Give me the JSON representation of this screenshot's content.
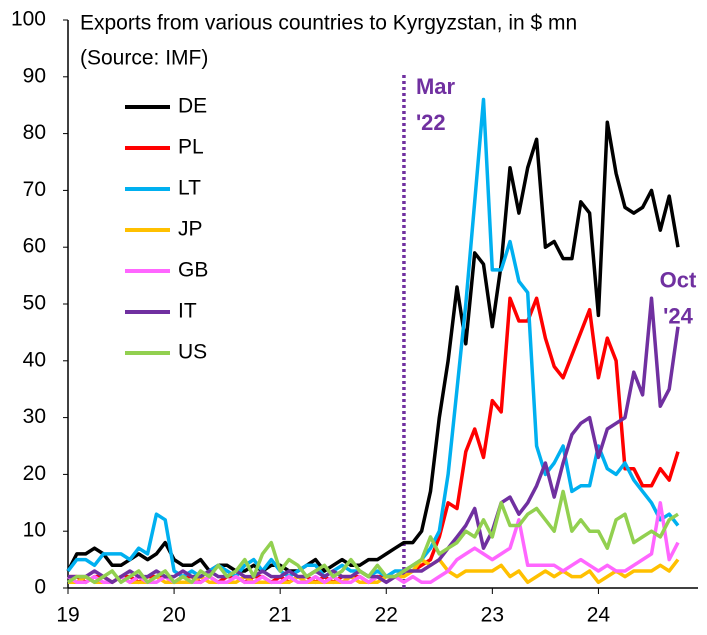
{
  "chart_data": {
    "type": "line",
    "title": "Exports from various countries to Kyrgyzstan, in $ mn",
    "subtitle": "(Source: IMF)",
    "categories": [
      "19",
      null,
      null,
      null,
      null,
      null,
      null,
      null,
      null,
      null,
      null,
      null,
      "20",
      null,
      null,
      null,
      null,
      null,
      null,
      null,
      null,
      null,
      null,
      null,
      "21",
      null,
      null,
      null,
      null,
      null,
      null,
      null,
      null,
      null,
      null,
      null,
      "22",
      null,
      null,
      null,
      null,
      null,
      null,
      null,
      null,
      null,
      null,
      null,
      "23",
      null,
      null,
      null,
      null,
      null,
      null,
      null,
      null,
      null,
      null,
      null,
      "24",
      null,
      null,
      null,
      null,
      null,
      null,
      null,
      null,
      null
    ],
    "ylim": [
      0,
      100
    ],
    "yticks": [
      0,
      10,
      20,
      30,
      40,
      50,
      60,
      70,
      80,
      90,
      100
    ],
    "vline": 38,
    "annotations": [
      {
        "text": "Mar '22",
        "x": 38,
        "y": 88
      },
      {
        "text": "Oct '24",
        "x": 69,
        "y": 54
      }
    ],
    "legend": "upper left",
    "series": [
      {
        "name": "DE",
        "color": "#000000",
        "values": [
          3,
          6,
          6,
          7,
          6,
          4,
          4,
          5,
          6,
          5,
          6,
          8,
          5,
          4,
          4,
          5,
          3,
          4,
          4,
          3,
          3,
          4,
          3,
          4,
          4,
          3,
          3,
          4,
          5,
          3,
          4,
          5,
          4,
          4,
          5,
          5,
          6,
          7,
          8,
          8,
          10,
          17,
          30,
          40,
          53,
          43,
          59,
          57,
          46,
          57,
          74,
          66,
          74,
          79,
          60,
          61,
          58,
          58,
          68,
          66,
          48,
          82,
          73,
          67,
          66,
          67,
          70,
          63,
          69,
          60
        ]
      },
      {
        "name": "PL",
        "color": "#ff0000",
        "values": [
          2,
          2,
          1,
          2,
          2,
          1,
          2,
          2,
          1,
          2,
          2,
          2,
          1,
          2,
          2,
          1,
          2,
          1,
          2,
          2,
          1,
          2,
          2,
          1,
          2,
          1,
          2,
          2,
          1,
          2,
          1,
          2,
          2,
          2,
          1,
          2,
          2,
          2,
          3,
          3,
          4,
          5,
          9,
          15,
          14,
          24,
          28,
          23,
          33,
          31,
          51,
          47,
          47,
          51,
          44,
          39,
          37,
          41,
          45,
          49,
          37,
          44,
          40,
          21,
          21,
          18,
          18,
          21,
          19,
          24
        ]
      },
      {
        "name": "LT",
        "color": "#00b0f0",
        "values": [
          3,
          5,
          5,
          4,
          6,
          6,
          6,
          5,
          7,
          6,
          13,
          12,
          3,
          2,
          3,
          2,
          3,
          4,
          3,
          2,
          4,
          5,
          3,
          5,
          3,
          2,
          3,
          4,
          4,
          2,
          3,
          4,
          3,
          3,
          2,
          3,
          2,
          3,
          3,
          4,
          5,
          7,
          10,
          20,
          35,
          50,
          68,
          86,
          56,
          56,
          61,
          54,
          52,
          25,
          20,
          22,
          25,
          17,
          18,
          18,
          25,
          21,
          20,
          22,
          19,
          17,
          15,
          12,
          13,
          11
        ]
      },
      {
        "name": "JP",
        "color": "#ffc000",
        "values": [
          1,
          1,
          2,
          1,
          1,
          1,
          2,
          1,
          1,
          1,
          2,
          1,
          1,
          1,
          1,
          2,
          1,
          1,
          1,
          1,
          2,
          1,
          1,
          1,
          1,
          1,
          2,
          1,
          1,
          1,
          1,
          1,
          2,
          1,
          1,
          1,
          2,
          2,
          2,
          3,
          5,
          4,
          5,
          3,
          2,
          3,
          3,
          3,
          3,
          4,
          2,
          3,
          1,
          2,
          3,
          2,
          3,
          2,
          2,
          3,
          1,
          2,
          3,
          2,
          3,
          3,
          3,
          4,
          3,
          5
        ]
      },
      {
        "name": "GB",
        "color": "#ff66ff",
        "values": [
          2,
          1,
          1,
          2,
          1,
          1,
          2,
          1,
          2,
          1,
          1,
          2,
          1,
          2,
          1,
          1,
          2,
          1,
          1,
          2,
          1,
          1,
          2,
          1,
          1,
          2,
          1,
          1,
          2,
          1,
          2,
          1,
          1,
          2,
          1,
          2,
          1,
          2,
          1,
          2,
          1,
          1,
          2,
          3,
          5,
          6,
          7,
          6,
          5,
          6,
          7,
          12,
          4,
          4,
          4,
          4,
          3,
          4,
          5,
          4,
          3,
          4,
          3,
          3,
          4,
          5,
          6,
          15,
          5,
          8
        ]
      },
      {
        "name": "IT",
        "color": "#7030a0",
        "values": [
          2,
          2,
          2,
          3,
          2,
          1,
          2,
          3,
          2,
          2,
          3,
          2,
          2,
          3,
          2,
          2,
          3,
          2,
          2,
          3,
          2,
          2,
          3,
          2,
          2,
          3,
          2,
          2,
          3,
          2,
          3,
          2,
          2,
          3,
          2,
          2,
          1,
          2,
          3,
          3,
          3,
          4,
          5,
          7,
          9,
          11,
          14,
          7,
          10,
          15,
          16,
          13,
          15,
          18,
          22,
          16,
          22,
          27,
          29,
          30,
          23,
          28,
          29,
          30,
          38,
          34,
          51,
          32,
          35,
          46
        ]
      },
      {
        "name": "US",
        "color": "#92d050",
        "values": [
          1,
          2,
          2,
          1,
          2,
          3,
          1,
          2,
          3,
          1,
          2,
          3,
          1,
          2,
          1,
          3,
          2,
          4,
          2,
          3,
          5,
          2,
          6,
          8,
          3,
          5,
          4,
          2,
          3,
          4,
          2,
          3,
          5,
          3,
          2,
          4,
          2,
          2,
          3,
          4,
          5,
          9,
          6,
          7,
          8,
          10,
          9,
          12,
          9,
          15,
          11,
          11,
          13,
          14,
          12,
          10,
          17,
          10,
          12,
          10,
          10,
          7,
          12,
          13,
          8,
          9,
          10,
          9,
          12,
          13
        ]
      }
    ]
  }
}
